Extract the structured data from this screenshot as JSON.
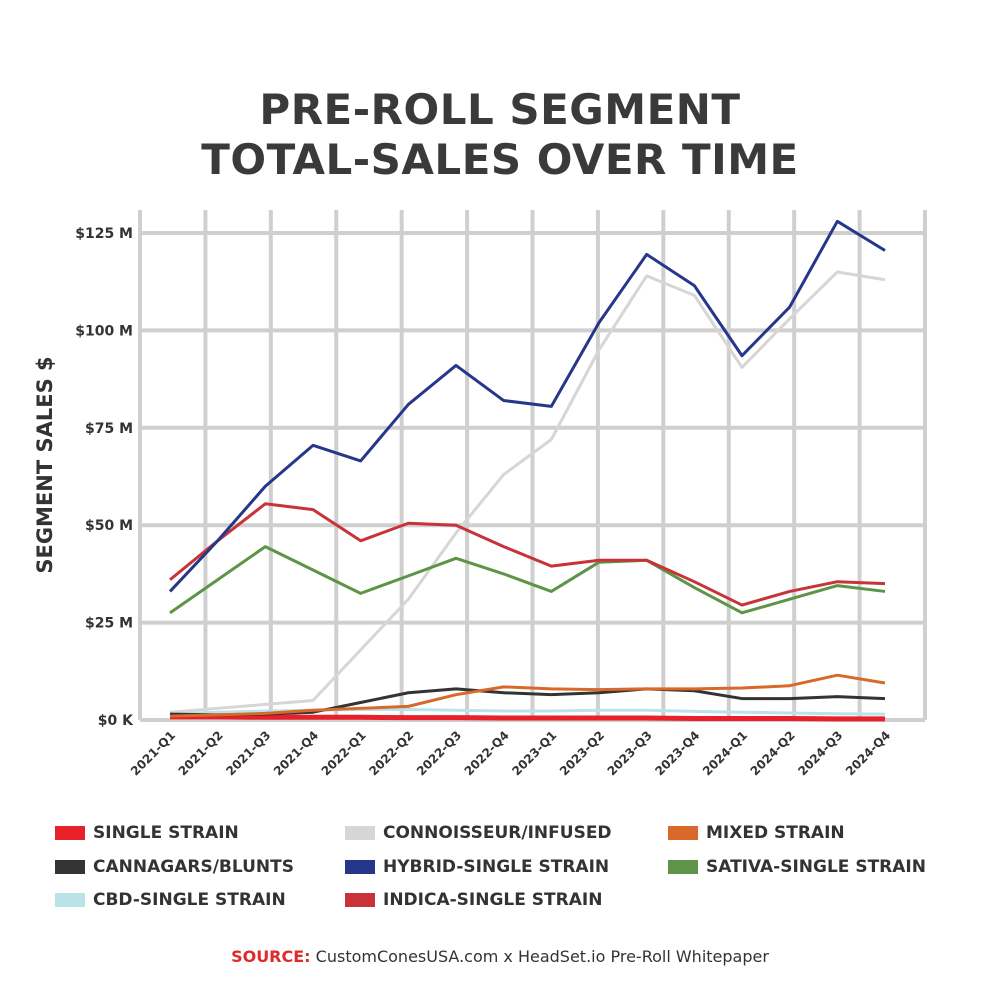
{
  "chart_data": {
    "type": "line",
    "title": [
      "PRE-ROLL SEGMENT",
      "TOTAL-SALES OVER TIME"
    ],
    "ylabel": "SEGMENT SALES $",
    "xlabel": "",
    "ylim": [
      0,
      125
    ],
    "yticks": [
      {
        "v": 0,
        "label": "$0 K"
      },
      {
        "v": 25,
        "label": "$25 M"
      },
      {
        "v": 50,
        "label": "$50 M"
      },
      {
        "v": 75,
        "label": "$75 M"
      },
      {
        "v": 100,
        "label": "$100 M"
      },
      {
        "v": 125,
        "label": "$125 M"
      }
    ],
    "grid": true,
    "legend": "bottom",
    "categories": [
      "2021-Q1",
      "2021-Q2",
      "2021-Q3",
      "2021-Q4",
      "2022-Q1",
      "2022-Q2",
      "2022-Q3",
      "2022-Q4",
      "2023-Q1",
      "2023-Q2",
      "2023-Q3",
      "2023-Q4",
      "2024-Q1",
      "2024-Q2",
      "2024-Q3",
      "2024-Q4"
    ],
    "series": [
      {
        "name": "SINGLE STRAIN",
        "color": "#e8202a",
        "values": [
          0.8,
          0.8,
          0.7,
          0.7,
          0.7,
          0.6,
          0.6,
          0.5,
          0.5,
          0.5,
          0.5,
          0.4,
          0.4,
          0.4,
          0.3,
          0.3
        ]
      },
      {
        "name": "CONNOISSEUR/INFUSED",
        "color": "#d6d6d6",
        "values": [
          2,
          3,
          4,
          5,
          18,
          31,
          48,
          63,
          72,
          95,
          114,
          109,
          90.5,
          103,
          115,
          113
        ]
      },
      {
        "name": "MIXED STRAIN",
        "color": "#d9692a",
        "values": [
          1,
          1.3,
          1.7,
          2.5,
          3,
          3.5,
          6.5,
          8.5,
          8,
          7.8,
          8,
          8,
          8.2,
          8.8,
          11.5,
          9.5
        ]
      },
      {
        "name": "CANNAGARS/BLUNTS",
        "color": "#333333",
        "values": [
          1.5,
          1.3,
          1.5,
          2,
          4.5,
          7,
          8,
          7,
          6.5,
          7,
          8,
          7.5,
          5.5,
          5.5,
          6,
          5.5
        ]
      },
      {
        "name": "HYBRID-SINGLE STRAIN",
        "color": "#26378a",
        "values": [
          33,
          46,
          60,
          70.5,
          66.5,
          81,
          91,
          82,
          80.5,
          102,
          119.5,
          111.5,
          93.5,
          106,
          128,
          120.5
        ]
      },
      {
        "name": "SATIVA-SINGLE STRAIN",
        "color": "#5e9447",
        "values": [
          27.5,
          36,
          44.5,
          38.5,
          32.5,
          37,
          41.5,
          37.5,
          33,
          40.5,
          41,
          34,
          27.5,
          31,
          34.5,
          33
        ]
      },
      {
        "name": "CBD-SINGLE STRAIN",
        "color": "#b9e3e8",
        "values": [
          1.5,
          2,
          2.3,
          2.5,
          2.7,
          2.7,
          2.5,
          2.3,
          2.3,
          2.5,
          2.5,
          2.2,
          2,
          1.8,
          1.6,
          1.5
        ]
      },
      {
        "name": "INDICA-SINGLE STRAIN",
        "color": "#c8333a",
        "values": [
          36,
          46,
          55.5,
          54,
          46,
          50.5,
          50,
          44.5,
          39.5,
          41,
          41,
          35.5,
          29.5,
          33,
          35.5,
          35
        ]
      }
    ]
  },
  "source": {
    "label": "SOURCE:",
    "text": " CustomConesUSA.com x HeadSet.io Pre-Roll Whitepaper"
  }
}
